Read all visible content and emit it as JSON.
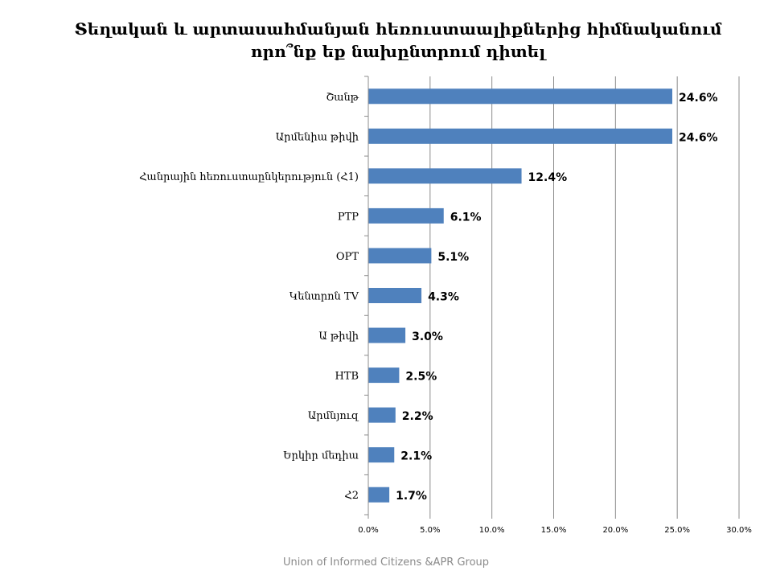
{
  "slide": {
    "title": "Տեղական և արտասահմանյան հեռուստաալիքներից հիմնականում որո՞նք եք նախընտրում դիտել",
    "footer": "Union of Informed Citizens &APR Group"
  },
  "chart_data": {
    "type": "bar",
    "orientation": "horizontal",
    "title": "Տեղական և արտասահմանյան հեռուստաալիքներից հիմնականում որո՞նք եք նախընտրում դիտել",
    "categories": [
      "Շանթ",
      "Արմենիա թիվի",
      "Հանրային հեռուստաընկերություն (Հ1)",
      "РТР",
      "ОРТ",
      "Կենտրոն TV",
      "Ա թիվի",
      "НТВ",
      "Արմնյուզ",
      "Երկիր մեդիա",
      "Հ2"
    ],
    "values": [
      24.6,
      24.6,
      12.4,
      6.1,
      5.1,
      4.3,
      3.0,
      2.5,
      2.2,
      2.1,
      1.7
    ],
    "data_labels": [
      "24.6%",
      "24.6%",
      "12.4%",
      "6.1%",
      "5.1%",
      "4.3%",
      "3.0%",
      "2.5%",
      "2.2%",
      "2.1%",
      "1.7%"
    ],
    "xlim": [
      0,
      30
    ],
    "x_ticks": [
      0,
      5,
      10,
      15,
      20,
      25,
      30
    ],
    "x_tick_labels": [
      "0.0%",
      "5.0%",
      "10.0%",
      "15.0%",
      "20.0%",
      "25.0%",
      "30.0%"
    ],
    "xlabel": "",
    "ylabel": "",
    "grid": "vertical",
    "legend": "none",
    "colors": {
      "bar": "#4f81bd",
      "grid": "#8c8c8c",
      "axis": "#8c8c8c"
    }
  }
}
